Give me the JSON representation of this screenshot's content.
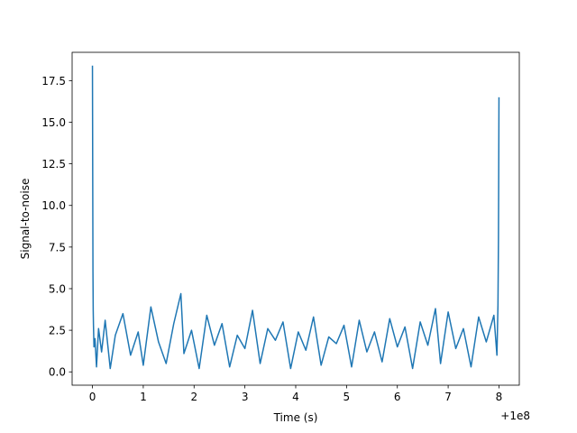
{
  "chart_data": {
    "type": "line",
    "title": "",
    "xlabel": "Time (s)",
    "ylabel": "Signal-to-noise",
    "x_offset_text": "+1e8",
    "xlim": [
      -0.4,
      8.4
    ],
    "ylim": [
      -0.8,
      19.2
    ],
    "xticks": [
      0,
      1,
      2,
      3,
      4,
      5,
      6,
      7,
      8
    ],
    "xtick_labels": [
      "0",
      "1",
      "2",
      "3",
      "4",
      "5",
      "6",
      "7",
      "8"
    ],
    "yticks": [
      0.0,
      2.5,
      5.0,
      7.5,
      10.0,
      12.5,
      15.0,
      17.5
    ],
    "ytick_labels": [
      "0.0",
      "2.5",
      "5.0",
      "7.5",
      "10.0",
      "12.5",
      "15.0",
      "17.5"
    ],
    "grid": false,
    "legend": "none",
    "color": "#1f77b4",
    "series": [
      {
        "x": [
          0.0,
          0.005,
          0.01,
          0.015,
          0.02,
          0.03,
          0.05,
          0.08,
          0.12,
          0.18,
          0.25,
          0.35,
          0.45,
          0.6,
          0.75,
          0.9,
          1.0,
          1.15,
          1.3,
          1.45,
          1.6,
          1.74,
          1.8,
          1.95,
          2.1,
          2.25,
          2.4,
          2.55,
          2.7,
          2.85,
          3.0,
          3.15,
          3.3,
          3.45,
          3.6,
          3.75,
          3.9,
          4.05,
          4.2,
          4.35,
          4.5,
          4.65,
          4.8,
          4.95,
          5.1,
          5.25,
          5.4,
          5.55,
          5.7,
          5.85,
          6.0,
          6.15,
          6.3,
          6.45,
          6.6,
          6.75,
          6.85,
          7.0,
          7.15,
          7.3,
          7.45,
          7.6,
          7.75,
          7.9,
          7.96,
          7.98,
          7.99,
          7.995,
          8.0
        ],
        "y": [
          18.4,
          12.0,
          6.0,
          3.7,
          2.8,
          1.5,
          2.0,
          0.3,
          2.6,
          1.2,
          3.1,
          0.2,
          2.2,
          3.5,
          1.0,
          2.4,
          0.4,
          3.9,
          1.8,
          0.5,
          2.9,
          4.7,
          1.1,
          2.5,
          0.2,
          3.4,
          1.6,
          2.9,
          0.3,
          2.2,
          1.4,
          3.7,
          0.5,
          2.6,
          1.9,
          3.0,
          0.2,
          2.4,
          1.3,
          3.3,
          0.4,
          2.1,
          1.7,
          2.8,
          0.3,
          3.1,
          1.2,
          2.4,
          0.6,
          3.2,
          1.5,
          2.7,
          0.2,
          3.0,
          1.6,
          3.8,
          0.5,
          3.6,
          1.4,
          2.6,
          0.3,
          3.3,
          1.8,
          3.4,
          1.0,
          4.0,
          8.0,
          12.0,
          16.5
        ]
      }
    ]
  }
}
